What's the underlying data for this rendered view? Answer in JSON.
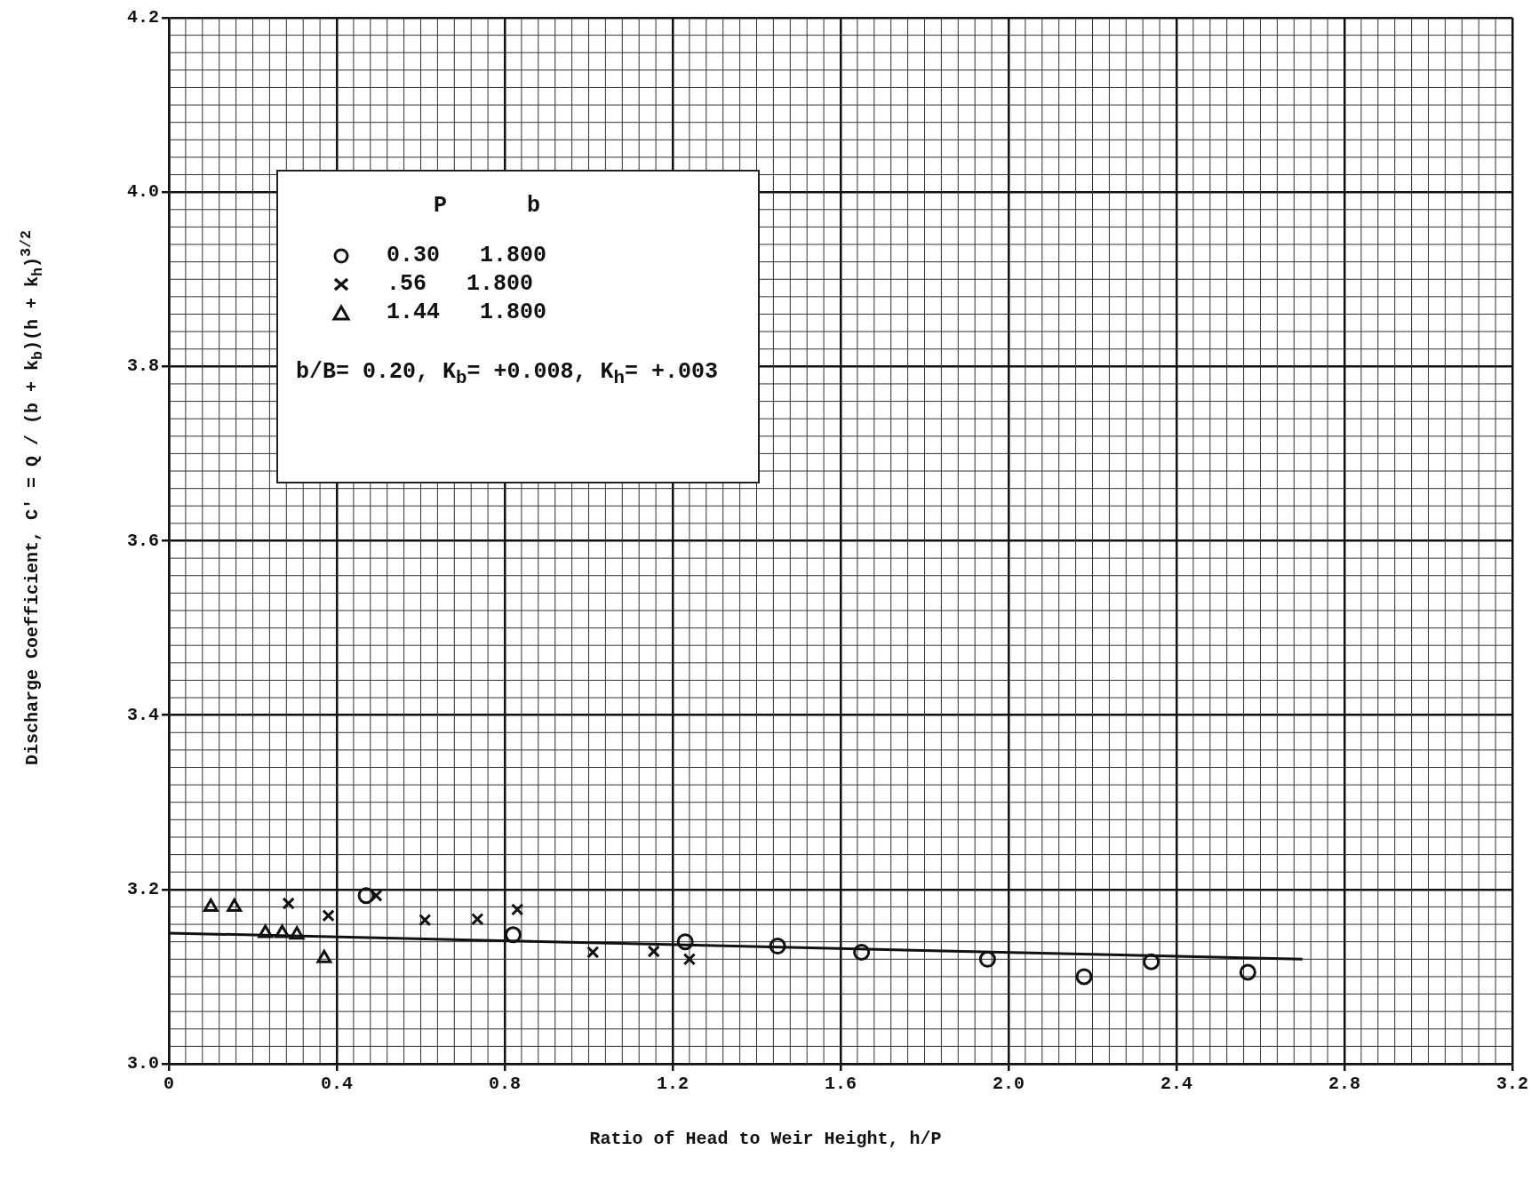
{
  "chart_data": {
    "type": "scatter",
    "xlabel": "Ratio of Head to Weir Height, h/P",
    "ylabel": "Discharge Coefficient, C' = Q / (b + k$_{b}$)(h + k$_{h}$)$^{3/2}$",
    "legend_title": "P      b",
    "legend": "top left",
    "grid": true,
    "annotations": [
      "b/B= 0.20, K$_{b}$= +0.008, K$_{h}$= +.003"
    ],
    "xlim": [
      0,
      3.2
    ],
    "xticks": [
      0,
      {
        "value": 0.4,
        "label": "0.4"
      },
      {
        "value": 0.8,
        "label": "0.8"
      },
      {
        "value": 1.2,
        "label": "1.2"
      },
      {
        "value": 1.6,
        "label": "1.6"
      },
      {
        "value": 2.0,
        "label": "2.0"
      },
      {
        "value": 2.4,
        "label": "2.4"
      },
      {
        "value": 2.8,
        "label": "2.8"
      },
      {
        "value": 3.2,
        "label": "3.2"
      }
    ],
    "ylim": [
      3.0,
      4.2
    ],
    "yticks": [
      {
        "value": 3.0,
        "label": "3.0"
      },
      {
        "value": 3.2,
        "label": "3.2"
      },
      {
        "value": 3.4,
        "label": "3.4"
      },
      {
        "value": 3.6,
        "label": "3.6"
      },
      {
        "value": 3.8,
        "label": "3.8"
      },
      {
        "value": 4.0,
        "label": "4.0"
      },
      {
        "value": 4.2,
        "label": "4.2"
      }
    ],
    "series": [
      {
        "name": "0.30   1.800",
        "color": "#111111",
        "marker": "circle",
        "x": [
          0.47,
          0.82,
          1.23,
          1.45,
          1.65,
          1.95,
          2.18,
          2.34,
          2.57
        ],
        "values": [
          3.193,
          3.148,
          3.14,
          3.135,
          3.128,
          3.12,
          3.1,
          3.117,
          3.105
        ]
      },
      {
        "name": ".56   1.800",
        "color": "#111111",
        "marker": "cross",
        "x": [
          0.285,
          0.38,
          0.494,
          0.61,
          0.735,
          0.83,
          1.01,
          1.155,
          1.24
        ],
        "values": [
          3.184,
          3.17,
          3.193,
          3.165,
          3.166,
          3.177,
          3.128,
          3.129,
          3.12
        ]
      },
      {
        "name": "1.44   1.800",
        "color": "#111111",
        "marker": "triangle",
        "x": [
          0.1,
          0.156,
          0.23,
          0.27,
          0.305,
          0.37
        ],
        "values": [
          3.18,
          3.18,
          3.15,
          3.15,
          3.148,
          3.121
        ]
      },
      {
        "type": "line",
        "color": "#111111",
        "marker": "none",
        "line_style": "solid",
        "x": [
          0,
          2.7
        ],
        "values": [
          3.15,
          3.12
        ]
      }
    ]
  }
}
